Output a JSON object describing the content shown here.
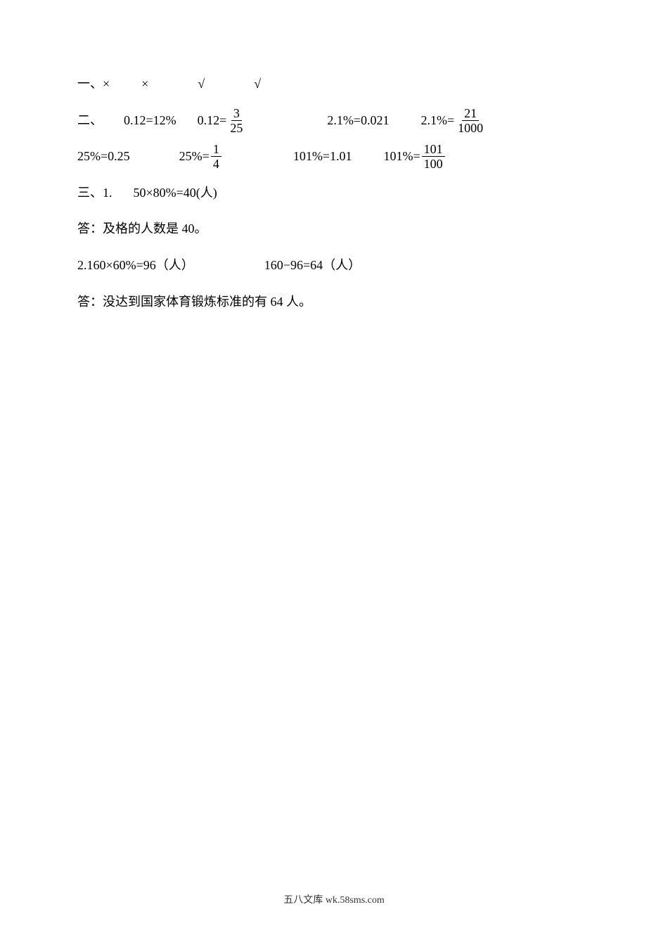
{
  "line1": {
    "label": "一、",
    "marks": [
      "×",
      "×",
      "√",
      "√"
    ]
  },
  "line2": {
    "label": "二、",
    "eq1_lhs": "0.12=",
    "eq1_rhs": "12%",
    "eq2_lhs": "0.12=",
    "eq2_frac_num": "3",
    "eq2_frac_den": "25",
    "eq3_lhs": "2.1%=",
    "eq3_rhs": "0.021",
    "eq4_lhs": "2.1%=",
    "eq4_frac_num": "21",
    "eq4_frac_den": "1000"
  },
  "line3": {
    "eq1_lhs": "25%=",
    "eq1_rhs": "0.25",
    "eq2_lhs": "25%=",
    "eq2_frac_num": "1",
    "eq2_frac_den": "4",
    "eq3_lhs": "101%=",
    "eq3_rhs": "1.01",
    "eq4_lhs": "101%=",
    "eq4_frac_num": "101",
    "eq4_frac_den": "100"
  },
  "line4": {
    "label": "三、1.",
    "expr": "50×80%=40(人)"
  },
  "line5": {
    "text": "答：及格的人数是 40。"
  },
  "line6": {
    "expr1": "2.160×60%=96（人）",
    "expr2": "160−96=64（人）"
  },
  "line7": {
    "text": "答：没达到国家体育锻炼标准的有 64 人。"
  },
  "footer": {
    "text": "五八文库 wk.58sms.com"
  },
  "style": {
    "background_color": "#ffffff",
    "text_color": "#000000",
    "font_size": 18,
    "footer_font_size": 14,
    "footer_color": "#333333"
  }
}
